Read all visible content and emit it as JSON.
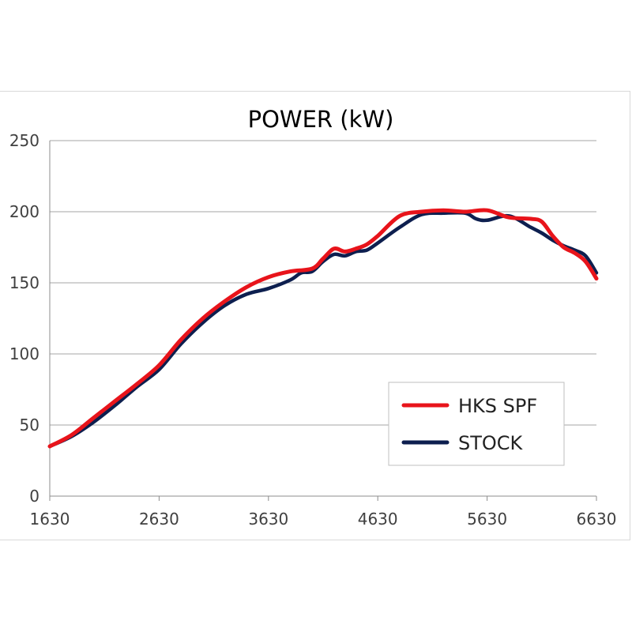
{
  "chart_data": {
    "type": "line",
    "title": "POWER (kW)",
    "xlabel": "",
    "ylabel": "",
    "xlim": [
      1630,
      6630
    ],
    "ylim": [
      0,
      250
    ],
    "x_ticks": [
      1630,
      2630,
      3630,
      4630,
      5630,
      6630
    ],
    "y_ticks": [
      0,
      50,
      100,
      150,
      200,
      250
    ],
    "grid": "horizontal",
    "legend_position": "bottom-right",
    "series": [
      {
        "name": "HKS SPF",
        "color": "#e8141b",
        "x": [
          1630,
          1830,
          2030,
          2230,
          2430,
          2630,
          2830,
          3030,
          3230,
          3430,
          3630,
          3830,
          4030,
          4130,
          4230,
          4330,
          4430,
          4530,
          4630,
          4830,
          5030,
          5230,
          5430,
          5630,
          5830,
          6030,
          6130,
          6230,
          6330,
          6430,
          6530,
          6630
        ],
        "values": [
          35,
          43,
          55,
          67,
          79,
          92,
          110,
          125,
          137,
          147,
          154,
          158,
          160,
          167,
          174,
          172,
          174,
          177,
          183,
          197,
          200,
          201,
          200,
          201,
          196,
          195,
          193,
          183,
          175,
          171,
          165,
          153
        ]
      },
      {
        "name": "STOCK",
        "color": "#0d1f4f",
        "x": [
          1630,
          1830,
          2030,
          2230,
          2430,
          2630,
          2830,
          3030,
          3230,
          3430,
          3630,
          3830,
          3930,
          4030,
          4130,
          4230,
          4330,
          4430,
          4530,
          4630,
          4830,
          5030,
          5230,
          5430,
          5530,
          5630,
          5830,
          6030,
          6130,
          6230,
          6330,
          6430,
          6530,
          6630
        ],
        "values": [
          35,
          42,
          52,
          64,
          77,
          89,
          107,
          122,
          134,
          142,
          146,
          152,
          157,
          158,
          165,
          170,
          169,
          172,
          173,
          178,
          189,
          198,
          199,
          199,
          195,
          194,
          197,
          189,
          185,
          180,
          176,
          173,
          169,
          157
        ]
      }
    ]
  }
}
